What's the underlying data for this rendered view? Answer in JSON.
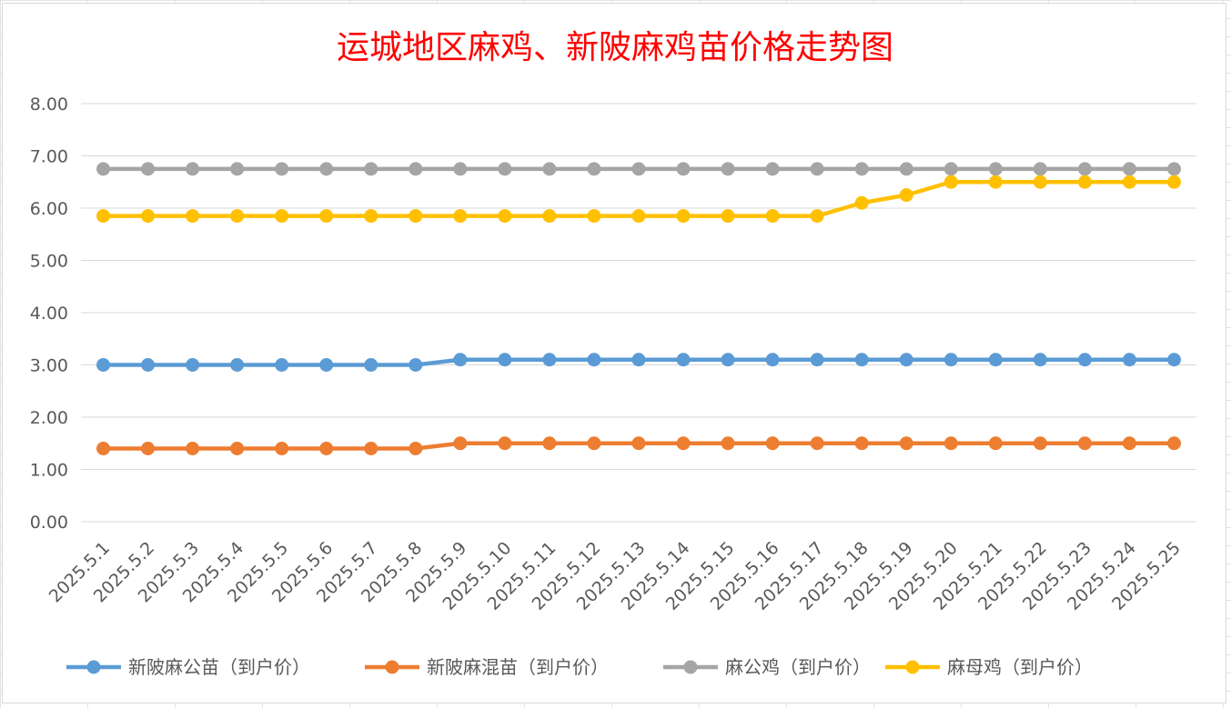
{
  "chart_data": {
    "type": "line",
    "title": "运城地区麻鸡、新陂麻鸡苗价格走势图",
    "ylim": [
      0,
      8
    ],
    "y_ticks": [
      "0.00",
      "1.00",
      "2.00",
      "3.00",
      "4.00",
      "5.00",
      "6.00",
      "7.00",
      "8.00"
    ],
    "y_tick_values": [
      0,
      1,
      2,
      3,
      4,
      5,
      6,
      7,
      8
    ],
    "grid": true,
    "legend_position": "bottom",
    "categories": [
      "2025.5.1",
      "2025.5.2",
      "2025.5.3",
      "2025.5.4",
      "2025.5.5",
      "2025.5.6",
      "2025.5.7",
      "2025.5.8",
      "2025.5.9",
      "2025.5.10",
      "2025.5.11",
      "2025.5.12",
      "2025.5.13",
      "2025.5.14",
      "2025.5.15",
      "2025.5.16",
      "2025.5.17",
      "2025.5.18",
      "2025.5.19",
      "2025.5.20",
      "2025.5.21",
      "2025.5.22",
      "2025.5.23",
      "2025.5.24",
      "2025.5.25"
    ],
    "series": [
      {
        "name": "新陂麻公苗（到户价）",
        "color": "#5b9bd5",
        "values": [
          3.0,
          3.0,
          3.0,
          3.0,
          3.0,
          3.0,
          3.0,
          3.0,
          3.1,
          3.1,
          3.1,
          3.1,
          3.1,
          3.1,
          3.1,
          3.1,
          3.1,
          3.1,
          3.1,
          3.1,
          3.1,
          3.1,
          3.1,
          3.1,
          3.1
        ]
      },
      {
        "name": "新陂麻混苗（到户价）",
        "color": "#ed7d31",
        "values": [
          1.4,
          1.4,
          1.4,
          1.4,
          1.4,
          1.4,
          1.4,
          1.4,
          1.5,
          1.5,
          1.5,
          1.5,
          1.5,
          1.5,
          1.5,
          1.5,
          1.5,
          1.5,
          1.5,
          1.5,
          1.5,
          1.5,
          1.5,
          1.5,
          1.5
        ]
      },
      {
        "name": "麻公鸡（到户价）",
        "color": "#a5a5a5",
        "values": [
          6.75,
          6.75,
          6.75,
          6.75,
          6.75,
          6.75,
          6.75,
          6.75,
          6.75,
          6.75,
          6.75,
          6.75,
          6.75,
          6.75,
          6.75,
          6.75,
          6.75,
          6.75,
          6.75,
          6.75,
          6.75,
          6.75,
          6.75,
          6.75,
          6.75
        ]
      },
      {
        "name": "麻母鸡（到户价）",
        "color": "#ffc000",
        "values": [
          5.85,
          5.85,
          5.85,
          5.85,
          5.85,
          5.85,
          5.85,
          5.85,
          5.85,
          5.85,
          5.85,
          5.85,
          5.85,
          5.85,
          5.85,
          5.85,
          5.85,
          6.1,
          6.25,
          6.5,
          6.5,
          6.5,
          6.5,
          6.5,
          6.5
        ]
      }
    ]
  }
}
